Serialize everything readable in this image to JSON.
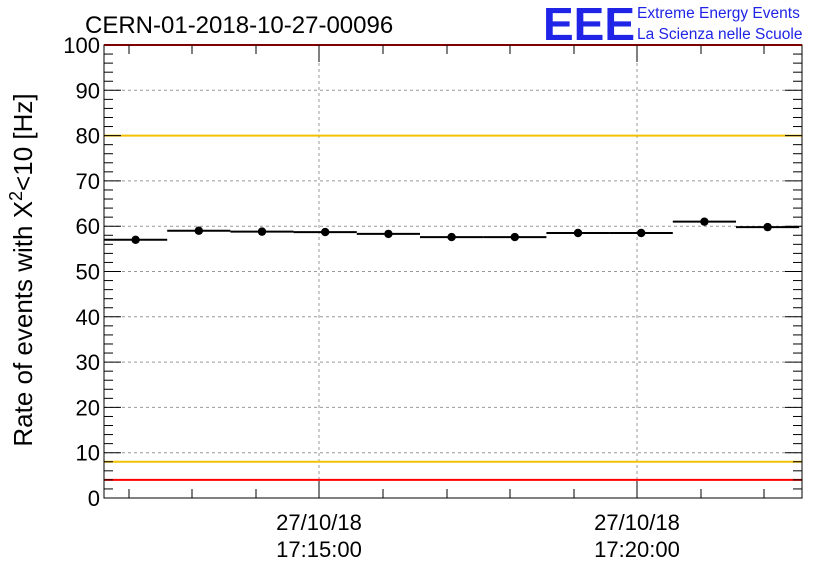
{
  "chart_data": {
    "type": "scatter",
    "title": "CERN-01-2018-10-27-00096",
    "ylabel_main": "Rate of events with X",
    "ylabel_sup": "2",
    "ylabel_tail": "<10 [Hz]",
    "ylim": [
      0,
      100
    ],
    "y_ticks": [
      "0",
      "10",
      "20",
      "30",
      "40",
      "50",
      "60",
      "70",
      "80",
      "90",
      "100"
    ],
    "x_ticks": [
      {
        "date": "27/10/18",
        "time": "17:15:00"
      },
      {
        "date": "27/10/18",
        "time": "17:20:00"
      }
    ],
    "grid": true,
    "reference_lines": [
      {
        "value": 100,
        "color": "#ff0000"
      },
      {
        "value": 80,
        "color": "#f2c200"
      },
      {
        "value": 8,
        "color": "#f2c200"
      },
      {
        "value": 4,
        "color": "#ff0000"
      }
    ],
    "points": [
      {
        "bin": 1,
        "y": 57
      },
      {
        "bin": 2,
        "y": 59
      },
      {
        "bin": 3,
        "y": 58.8
      },
      {
        "bin": 4,
        "y": 58.7
      },
      {
        "bin": 5,
        "y": 58.3
      },
      {
        "bin": 6,
        "y": 57.6
      },
      {
        "bin": 7,
        "y": 57.6
      },
      {
        "bin": 8,
        "y": 58.5
      },
      {
        "bin": 9,
        "y": 58.5
      },
      {
        "bin": 10,
        "y": 61
      },
      {
        "bin": 11,
        "y": 59.8
      }
    ],
    "marker_color": "#000000"
  },
  "logo": {
    "mark": "EEE",
    "line1": "Extreme Energy Events",
    "line2": "La Scienza nelle Scuole",
    "color": "#1f24e6"
  }
}
